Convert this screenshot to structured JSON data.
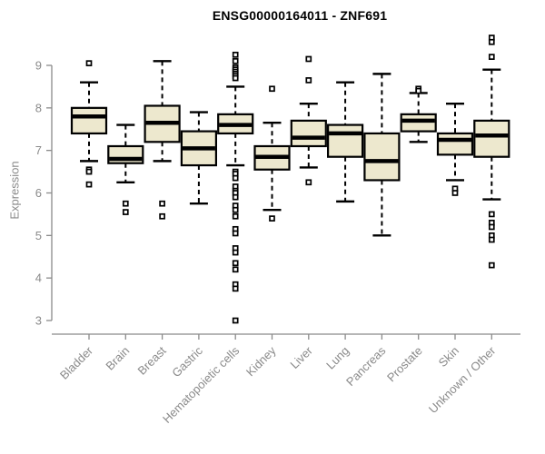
{
  "title": "ENSG00000164011 - ZNF691",
  "axes": {
    "y_label": "Expression",
    "y_ticks": [
      3,
      4,
      5,
      6,
      7,
      8,
      9
    ],
    "y_min": 3,
    "y_max": 9
  },
  "styles": {
    "box_fill": "#EDE8CE",
    "box_stroke": "#000000",
    "median_color": "#000000",
    "whisker_color": "#000000",
    "outlier_color": "#000000",
    "axis_color": "#8a8a8a",
    "tick_label_color": "#8a8a8a",
    "title_color": "#000000",
    "background": "#ffffff"
  },
  "chart_data": {
    "type": "boxplot",
    "title": "ENSG00000164011 - ZNF691",
    "xlabel": "",
    "ylabel": "Expression",
    "ylim": [
      3,
      9
    ],
    "grid": false,
    "legend": "none",
    "categories": [
      "Bladder",
      "Brain",
      "Breast",
      "Gastric",
      "Hematopoietic cells",
      "Kidney",
      "Liver",
      "Lung",
      "Pancreas",
      "Prostate",
      "Skin",
      "Unknown / Other"
    ],
    "boxes": [
      {
        "category": "Bladder",
        "low": 6.75,
        "q1": 7.4,
        "median": 7.8,
        "q3": 8.0,
        "high": 8.6,
        "outliers": [
          9.05,
          6.55,
          6.5,
          6.2
        ]
      },
      {
        "category": "Brain",
        "low": 6.25,
        "q1": 6.7,
        "median": 6.8,
        "q3": 7.1,
        "high": 7.6,
        "outliers": [
          5.75,
          5.55
        ]
      },
      {
        "category": "Breast",
        "low": 6.75,
        "q1": 7.2,
        "median": 7.65,
        "q3": 8.05,
        "high": 9.1,
        "outliers": [
          5.75,
          5.45
        ]
      },
      {
        "category": "Gastric",
        "low": 5.75,
        "q1": 6.65,
        "median": 7.05,
        "q3": 7.45,
        "high": 7.9,
        "outliers": []
      },
      {
        "category": "Hematopoietic cells",
        "low": 6.65,
        "q1": 7.4,
        "median": 7.6,
        "q3": 7.85,
        "high": 8.5,
        "outliers": [
          9.25,
          9.1,
          8.95,
          8.9,
          8.85,
          8.8,
          8.75,
          8.7,
          6.5,
          6.45,
          6.35,
          6.15,
          6.05,
          6.0,
          5.9,
          5.7,
          5.6,
          5.45,
          5.15,
          5.05,
          4.7,
          4.6,
          4.35,
          4.2,
          3.85,
          3.75,
          3.0
        ]
      },
      {
        "category": "Kidney",
        "low": 5.6,
        "q1": 6.55,
        "median": 6.85,
        "q3": 7.1,
        "high": 7.65,
        "outliers": [
          8.45,
          5.4
        ]
      },
      {
        "category": "Liver",
        "low": 6.6,
        "q1": 7.1,
        "median": 7.3,
        "q3": 7.7,
        "high": 8.1,
        "outliers": [
          9.15,
          8.65,
          6.25
        ]
      },
      {
        "category": "Lung",
        "low": 5.8,
        "q1": 6.85,
        "median": 7.4,
        "q3": 7.6,
        "high": 8.6,
        "outliers": []
      },
      {
        "category": "Pancreas",
        "low": 5.0,
        "q1": 6.3,
        "median": 6.75,
        "q3": 7.4,
        "high": 8.8,
        "outliers": []
      },
      {
        "category": "Prostate",
        "low": 7.2,
        "q1": 7.45,
        "median": 7.7,
        "q3": 7.85,
        "high": 8.35,
        "outliers": [
          8.45,
          8.4
        ]
      },
      {
        "category": "Skin",
        "low": 6.3,
        "q1": 6.9,
        "median": 7.25,
        "q3": 7.4,
        "high": 8.1,
        "outliers": [
          6.1,
          6.0
        ]
      },
      {
        "category": "Unknown / Other",
        "low": 5.85,
        "q1": 6.85,
        "median": 7.35,
        "q3": 7.7,
        "high": 8.9,
        "outliers": [
          9.65,
          9.55,
          9.2,
          5.5,
          5.3,
          5.2,
          5.0,
          4.9,
          4.3
        ]
      }
    ]
  }
}
